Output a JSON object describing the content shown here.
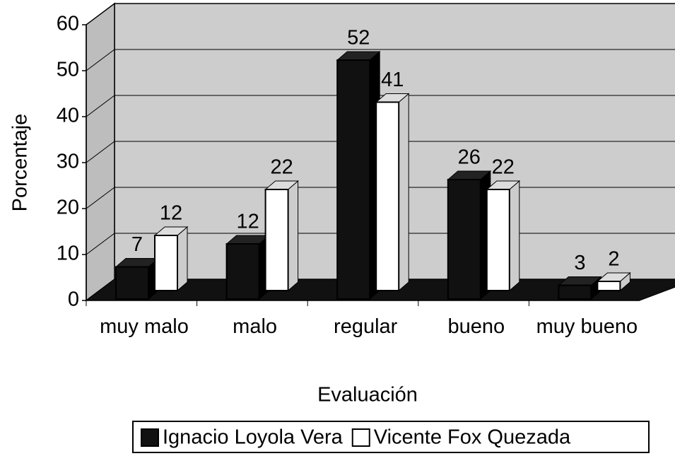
{
  "chart_data": {
    "type": "bar3d",
    "x_label": "Evaluación",
    "y_label": "Porcentaje",
    "categories": [
      "muy malo",
      "malo",
      "regular",
      "bueno",
      "muy bueno"
    ],
    "series": [
      {
        "name": "Ignacio Loyola Vera",
        "color": "#111111",
        "values": [
          7,
          12,
          52,
          26,
          3
        ]
      },
      {
        "name": "Vicente Fox Quezada",
        "color": "#ffffff",
        "values": [
          12,
          22,
          41,
          22,
          2
        ]
      }
    ],
    "ylim": [
      0,
      60
    ],
    "yticks": [
      0,
      10,
      20,
      30,
      40,
      50,
      60
    ],
    "grid": true,
    "legend": "bottom"
  }
}
